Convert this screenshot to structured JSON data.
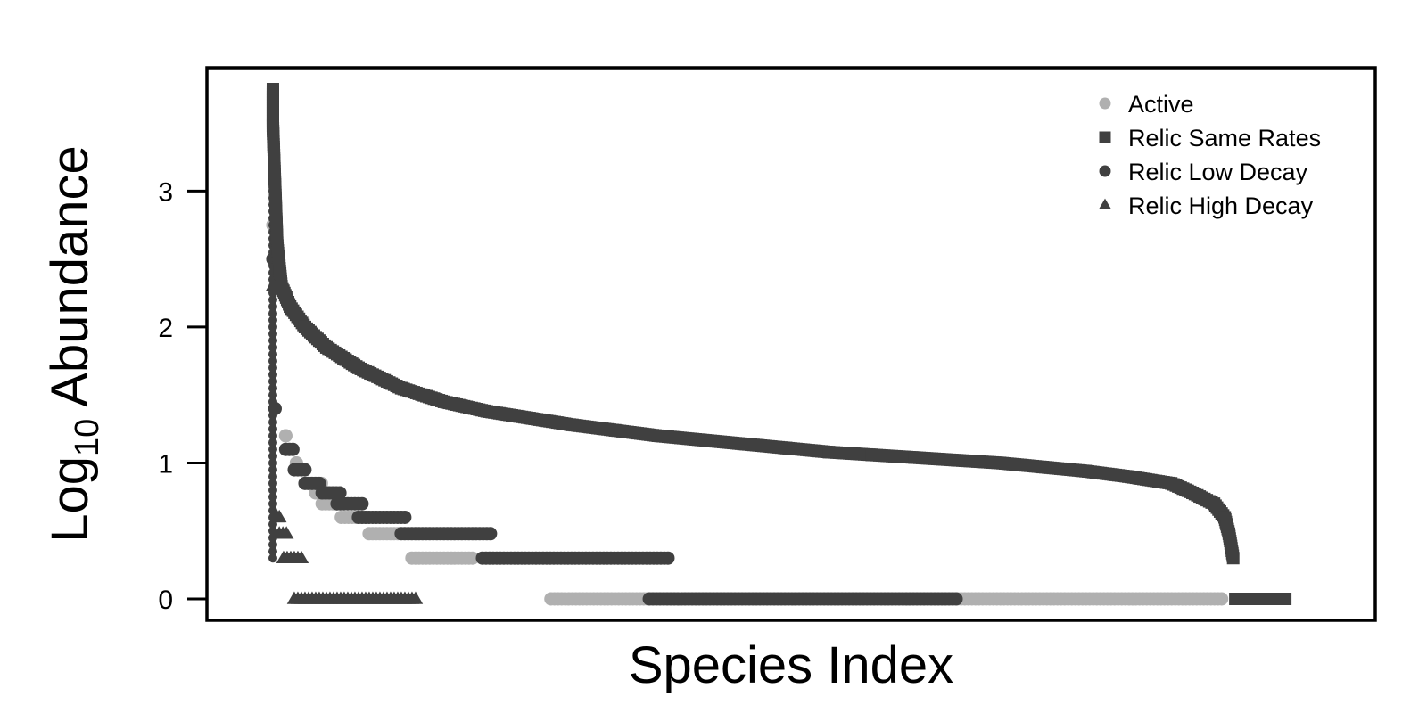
{
  "chart_data": {
    "type": "scatter",
    "title": "",
    "xlabel": "Species Index",
    "ylabel_main": "Log",
    "ylabel_sub": "10",
    "ylabel_rest": " Abundance",
    "ylim": [
      0,
      3.75
    ],
    "xlim": [
      -150,
      5000
    ],
    "yticks": [
      0,
      1,
      2,
      3
    ],
    "grid": false,
    "legend_position": "top-right",
    "colors": {
      "active": "#b0b0b0",
      "relic": "#404040"
    },
    "series": [
      {
        "name": "Active",
        "marker": "circle",
        "color": "#b0b0b0",
        "runs": [
          {
            "y": 2.75,
            "x_start": 0,
            "x_end": 0
          },
          {
            "y": 1.2,
            "x_start": 60,
            "x_end": 60
          },
          {
            "y": 1.0,
            "x_start": 110,
            "x_end": 110
          },
          {
            "y": 0.85,
            "x_start": 160,
            "x_end": 230
          },
          {
            "y": 0.78,
            "x_start": 200,
            "x_end": 260
          },
          {
            "y": 0.7,
            "x_start": 230,
            "x_end": 330
          },
          {
            "y": 0.6,
            "x_start": 320,
            "x_end": 450
          },
          {
            "y": 0.48,
            "x_start": 450,
            "x_end": 600
          },
          {
            "y": 0.3,
            "x_start": 650,
            "x_end": 950
          },
          {
            "y": 0.0,
            "x_start": 1300,
            "x_end": 4450
          }
        ]
      },
      {
        "name": "Relic Same Rates",
        "marker": "square",
        "color": "#404040",
        "curve": [
          [
            0,
            3.75
          ],
          [
            0,
            3.48
          ],
          [
            20,
            2.6
          ],
          [
            40,
            2.3
          ],
          [
            80,
            2.15
          ],
          [
            150,
            2.0
          ],
          [
            250,
            1.85
          ],
          [
            400,
            1.7
          ],
          [
            600,
            1.55
          ],
          [
            800,
            1.45
          ],
          [
            1000,
            1.38
          ],
          [
            1200,
            1.33
          ],
          [
            1400,
            1.28
          ],
          [
            1600,
            1.24
          ],
          [
            1800,
            1.2
          ],
          [
            2000,
            1.17
          ],
          [
            2200,
            1.14
          ],
          [
            2400,
            1.11
          ],
          [
            2600,
            1.08
          ],
          [
            2800,
            1.06
          ],
          [
            3000,
            1.04
          ],
          [
            3200,
            1.02
          ],
          [
            3400,
            1.0
          ],
          [
            3600,
            0.97
          ],
          [
            3800,
            0.94
          ],
          [
            4000,
            0.9
          ],
          [
            4200,
            0.85
          ],
          [
            4300,
            0.78
          ],
          [
            4400,
            0.7
          ],
          [
            4450,
            0.6
          ],
          [
            4470,
            0.48
          ],
          [
            4490,
            0.3
          ]
        ],
        "zero_run": {
          "x_start": 4500,
          "x_end": 4750
        }
      },
      {
        "name": "Relic Low Decay",
        "marker": "circle",
        "color": "#404040",
        "runs": [
          {
            "y": 2.5,
            "x_start": 0,
            "x_end": 0
          },
          {
            "y": 1.4,
            "x_start": 10,
            "x_end": 10
          },
          {
            "y": 1.1,
            "x_start": 60,
            "x_end": 100
          },
          {
            "y": 0.95,
            "x_start": 100,
            "x_end": 150
          },
          {
            "y": 0.85,
            "x_start": 150,
            "x_end": 220
          },
          {
            "y": 0.78,
            "x_start": 230,
            "x_end": 320
          },
          {
            "y": 0.7,
            "x_start": 300,
            "x_end": 420
          },
          {
            "y": 0.6,
            "x_start": 400,
            "x_end": 620
          },
          {
            "y": 0.48,
            "x_start": 600,
            "x_end": 1020
          },
          {
            "y": 0.3,
            "x_start": 980,
            "x_end": 1850
          },
          {
            "y": 0.0,
            "x_start": 1760,
            "x_end": 3200
          }
        ]
      },
      {
        "name": "Relic High Decay",
        "marker": "triangle",
        "color": "#404040",
        "runs": [
          {
            "y": 2.3,
            "x_start": 0,
            "x_end": 0
          },
          {
            "y": 0.6,
            "x_start": 20,
            "x_end": 30
          },
          {
            "y": 0.48,
            "x_start": 30,
            "x_end": 70
          },
          {
            "y": 0.3,
            "x_start": 50,
            "x_end": 140
          },
          {
            "y": 0.0,
            "x_start": 100,
            "x_end": 680
          }
        ]
      }
    ],
    "legend": [
      "Active",
      "Relic Same Rates",
      "Relic Low Decay",
      "Relic High Decay"
    ]
  }
}
